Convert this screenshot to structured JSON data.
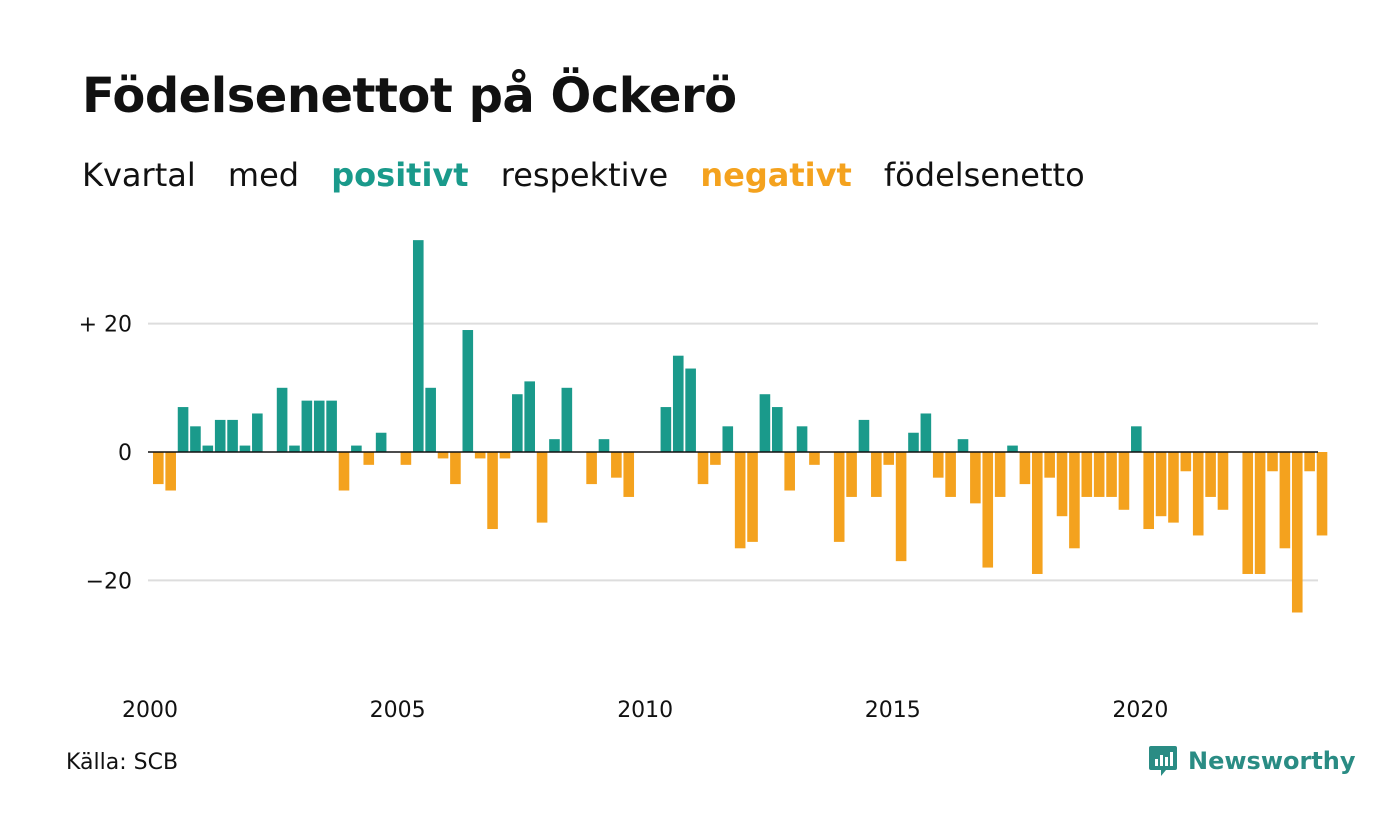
{
  "header": {
    "title": "Födelsenettot på Öckerö",
    "subtitle": {
      "part1": "Kvartal",
      "part2": "med",
      "positive_word": "positivt",
      "part3": "respektive",
      "negative_word": "negativt",
      "part4": "födelsenetto"
    }
  },
  "footer": {
    "source": "Källa: SCB",
    "brand": "Newsworthy"
  },
  "colors": {
    "positive": "#1a9a8b",
    "negative": "#f4a21e",
    "gridline": "#dddddd",
    "zeroline": "#111111",
    "brand": "#2a8c84"
  },
  "chart_data": {
    "type": "bar",
    "title": "Födelsenettot på Öckerö",
    "x_start": "2000 Q1",
    "x_end": "2023 Q3",
    "x_ticks": [
      {
        "label": "2000",
        "year": 2000
      },
      {
        "label": "2005",
        "year": 2005
      },
      {
        "label": "2010",
        "year": 2010
      },
      {
        "label": "2015",
        "year": 2015
      },
      {
        "label": "2020",
        "year": 2020
      }
    ],
    "y_ticks": [
      {
        "label": "+ 20",
        "value": 20
      },
      {
        "label": "0",
        "value": 0
      },
      {
        "label": "−20",
        "value": -20
      }
    ],
    "ylim": [
      -30,
      35
    ],
    "grid": true,
    "values": [
      -5,
      -6,
      7,
      4,
      1,
      5,
      5,
      1,
      6,
      0,
      10,
      1,
      8,
      8,
      8,
      -6,
      1,
      -2,
      3,
      0,
      -2,
      33,
      10,
      -1,
      -5,
      19,
      -1,
      -12,
      -1,
      9,
      11,
      -11,
      2,
      10,
      0,
      -5,
      2,
      -4,
      -7,
      0,
      0,
      7,
      15,
      13,
      -5,
      -2,
      4,
      -15,
      -14,
      9,
      7,
      -6,
      4,
      -2,
      0,
      -14,
      -7,
      5,
      -7,
      -2,
      -17,
      3,
      6,
      -4,
      -7,
      2,
      -8,
      -18,
      -7,
      1,
      -5,
      -19,
      -4,
      -10,
      -15,
      -7,
      -7,
      -7,
      -9,
      4,
      -12,
      -10,
      -11,
      -3,
      -13,
      -7,
      -9,
      0,
      -19,
      -19,
      -3,
      -15,
      -25,
      -3,
      -13
    ]
  }
}
